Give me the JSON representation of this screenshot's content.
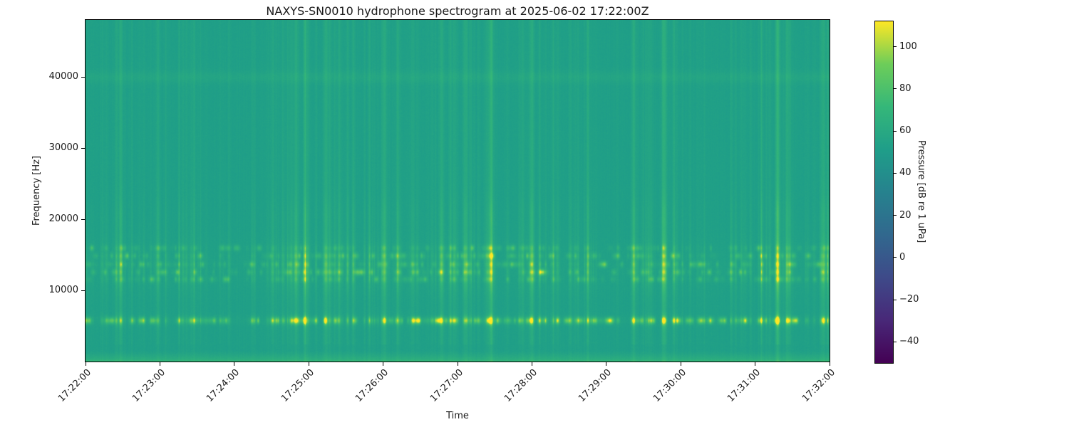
{
  "chart_data": {
    "type": "heatmap",
    "title": "NAXYS-SN0010 hydrophone spectrogram at 2025-06-02 17:22:00Z",
    "xlabel": "Time",
    "ylabel": "Frequency [Hz]",
    "x_tick_labels": [
      "17:22:00",
      "17:23:00",
      "17:24:00",
      "17:25:00",
      "17:26:00",
      "17:27:00",
      "17:28:00",
      "17:29:00",
      "17:30:00",
      "17:31:00",
      "17:32:00"
    ],
    "x_range_seconds": [
      0,
      600
    ],
    "y_ticks_hz": [
      10000,
      20000,
      30000,
      40000
    ],
    "freq_range_hz": [
      0,
      48000
    ],
    "grid": false,
    "colorbar": {
      "label": "Pressure [dB re 1 uPa]",
      "ticks": [
        100,
        80,
        60,
        40,
        20,
        0,
        -20,
        -40
      ],
      "range_db": [
        -50,
        112
      ],
      "colormap": "viridis"
    },
    "viridis_stops": [
      "#440154",
      "#482878",
      "#3e4a89",
      "#31688e",
      "#26828e",
      "#1f9e89",
      "#35b779",
      "#6dcd59",
      "#fde725"
    ],
    "background_db": 53,
    "features": {
      "low_band_hz": [
        0,
        1600
      ],
      "low_band_peak_db": 68,
      "tonal_band_hz": 5800,
      "tonal_peak_db": 102,
      "click_band_hz": [
        11600,
        12600,
        13700,
        14900,
        16000
      ],
      "high_line_hz": 40000,
      "high_line_boost_db": 4,
      "strong_event_times_s": [
        177,
        193,
        241,
        287,
        326,
        359,
        466,
        474,
        558,
        566,
        595
      ],
      "seed": 20250602
    }
  }
}
